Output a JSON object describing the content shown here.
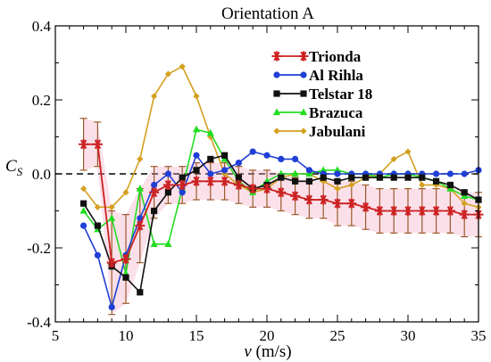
{
  "chart_data": {
    "type": "line",
    "title": "Orientation A",
    "xlabel_var": "v",
    "xlabel_unit": " (m/s)",
    "ylabel_main": "C",
    "ylabel_sub": "S",
    "xlim": [
      5,
      35
    ],
    "ylim": [
      -0.4,
      0.4
    ],
    "xticks": [
      5,
      10,
      15,
      20,
      25,
      30,
      35
    ],
    "xtick_labels": [
      "5",
      "10",
      "15",
      "20",
      "25",
      "30",
      "35"
    ],
    "yticks": [
      -0.4,
      -0.2,
      0.0,
      0.2,
      0.4
    ],
    "ytick_labels": [
      "-0.4",
      "-0.2",
      "0.0",
      "0.2",
      "0.4"
    ],
    "reference_line": 0,
    "legend_position": "top-right",
    "series": [
      {
        "name": "Trionda",
        "color": "#cc2222",
        "marker": "star",
        "x": [
          7,
          8,
          9,
          10,
          11,
          12,
          13,
          14,
          15,
          16,
          17,
          18,
          19,
          20,
          21,
          22,
          23,
          24,
          25,
          26,
          27,
          28,
          29,
          30,
          31,
          32,
          33,
          34,
          35
        ],
        "y": [
          0.08,
          0.08,
          -0.24,
          -0.23,
          -0.14,
          -0.05,
          -0.03,
          -0.03,
          -0.02,
          -0.02,
          -0.02,
          -0.03,
          -0.04,
          -0.04,
          -0.05,
          -0.06,
          -0.07,
          -0.07,
          -0.08,
          -0.08,
          -0.09,
          -0.1,
          -0.1,
          -0.1,
          -0.1,
          -0.1,
          -0.1,
          -0.11,
          -0.11
        ],
        "error": [
          0.07,
          0.06,
          0.14,
          0.12,
          0.1,
          0.07,
          0.05,
          0.05,
          0.05,
          0.05,
          0.05,
          0.05,
          0.05,
          0.05,
          0.05,
          0.05,
          0.05,
          0.05,
          0.06,
          0.06,
          0.06,
          0.06,
          0.06,
          0.06,
          0.06,
          0.06,
          0.06,
          0.06,
          0.06
        ]
      },
      {
        "name": "Al Rihla",
        "color": "#1f3fd6",
        "marker": "circle",
        "x": [
          7,
          8,
          9,
          10,
          11,
          12,
          13,
          14,
          15,
          16,
          17,
          18,
          19,
          20,
          21,
          22,
          23,
          24,
          25,
          26,
          27,
          28,
          29,
          30,
          31,
          32,
          33,
          34,
          35
        ],
        "y": [
          -0.14,
          -0.22,
          -0.36,
          -0.22,
          -0.12,
          -0.03,
          0.0,
          -0.05,
          0.05,
          0.0,
          0.01,
          0.03,
          0.06,
          0.05,
          0.04,
          0.04,
          0.01,
          0.0,
          0.0,
          0.0,
          0.0,
          0.0,
          0.0,
          0.0,
          0.0,
          0.0,
          0.0,
          0.0,
          0.01
        ]
      },
      {
        "name": "Telstar 18",
        "color": "#111111",
        "marker": "square",
        "x": [
          7,
          8,
          9,
          10,
          11,
          12,
          13,
          14,
          15,
          16,
          17,
          18,
          19,
          20,
          21,
          22,
          23,
          24,
          25,
          26,
          27,
          28,
          29,
          30,
          31,
          32,
          33,
          34,
          35
        ],
        "y": [
          -0.08,
          -0.14,
          -0.25,
          -0.28,
          -0.32,
          -0.1,
          -0.05,
          -0.01,
          0.01,
          0.04,
          0.05,
          -0.01,
          -0.04,
          -0.03,
          -0.01,
          -0.02,
          -0.02,
          -0.01,
          -0.02,
          -0.01,
          -0.01,
          -0.01,
          -0.01,
          -0.01,
          -0.01,
          -0.02,
          -0.03,
          -0.05,
          -0.07
        ]
      },
      {
        "name": "Brazuca",
        "color": "#22dd22",
        "marker": "triangle",
        "x": [
          7,
          8,
          9,
          10,
          11,
          12,
          13,
          14,
          15,
          16,
          17,
          18,
          19,
          20,
          21,
          22,
          23,
          24,
          25,
          26,
          27,
          28,
          29,
          30,
          31,
          32,
          33,
          34,
          35
        ],
        "y": [
          -0.1,
          -0.15,
          -0.12,
          -0.27,
          -0.04,
          -0.19,
          -0.19,
          -0.04,
          0.12,
          0.11,
          0.04,
          -0.02,
          -0.05,
          -0.02,
          0.0,
          0.0,
          0.0,
          0.01,
          0.01,
          0.0,
          0.0,
          -0.01,
          0.0,
          0.0,
          -0.01,
          -0.02,
          -0.04,
          -0.06,
          -0.07
        ]
      },
      {
        "name": "Jabulani",
        "color": "#d4a020",
        "marker": "diamond",
        "x": [
          7,
          8,
          9,
          10,
          11,
          12,
          13,
          14,
          15,
          16,
          17,
          18,
          19,
          20,
          21,
          22,
          23,
          24,
          25,
          26,
          27,
          28,
          29,
          30,
          31,
          32,
          33,
          34,
          35
        ],
        "y": [
          -0.04,
          -0.09,
          -0.09,
          -0.05,
          0.04,
          0.21,
          0.27,
          0.29,
          0.21,
          0.1,
          0.0,
          -0.03,
          -0.05,
          -0.04,
          -0.01,
          0.0,
          0.0,
          -0.02,
          -0.04,
          -0.03,
          -0.01,
          0.0,
          0.04,
          0.06,
          -0.03,
          -0.03,
          -0.04,
          -0.08,
          -0.09
        ]
      }
    ]
  }
}
